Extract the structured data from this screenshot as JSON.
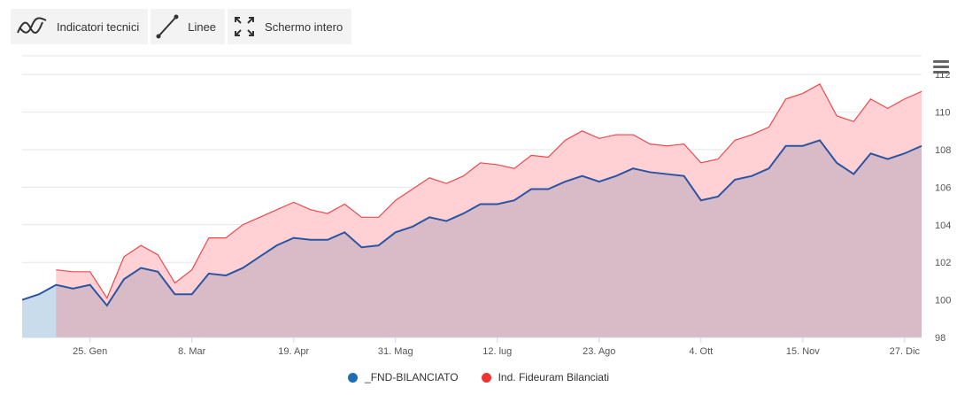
{
  "toolbar": {
    "items": [
      {
        "label": "Indicatori tecnici",
        "icon": "indicators-icon"
      },
      {
        "label": "Linee",
        "icon": "line-draw-icon"
      },
      {
        "label": "Schermo intero",
        "icon": "fullscreen-icon"
      }
    ]
  },
  "menu": {
    "icon": "hamburger-menu-icon"
  },
  "colors": {
    "fund_line": "#2b55a3",
    "fund_fill": "#c9dcec",
    "index_line": "#f0484b",
    "index_fill": "#ffd1d4",
    "overlap_fill": "#d9bac7",
    "grid": "#e6e6e6",
    "legend_fund": "#1f6db5",
    "legend_index": "#f03434"
  },
  "chart_data": {
    "type": "area",
    "title": "",
    "xlabel": "",
    "ylabel": "",
    "ylim": [
      98,
      113
    ],
    "yticks": [
      98,
      100,
      102,
      104,
      106,
      108,
      110,
      112
    ],
    "xticks": [
      "25. Gen",
      "8. Mar",
      "19. Apr",
      "31. Mag",
      "12. lug",
      "23. Ago",
      "4. Ott",
      "15. Nov",
      "27. Dic"
    ],
    "xtick_index": [
      4,
      10,
      16,
      22,
      28,
      34,
      40,
      46,
      52
    ],
    "x_count": 54,
    "grid": true,
    "legend_position": "bottom-center",
    "series": [
      {
        "name": "_FND-BILANCIATO",
        "values": [
          100.0,
          100.3,
          100.8,
          100.6,
          100.8,
          99.7,
          101.1,
          101.7,
          101.5,
          100.3,
          100.3,
          101.4,
          101.3,
          101.7,
          102.3,
          102.9,
          103.3,
          103.2,
          103.2,
          103.6,
          102.8,
          102.9,
          103.6,
          103.9,
          104.4,
          104.2,
          104.6,
          105.1,
          105.1,
          105.3,
          105.9,
          105.9,
          106.3,
          106.6,
          106.3,
          106.6,
          107.0,
          106.8,
          106.7,
          106.6,
          105.3,
          105.5,
          106.4,
          106.6,
          107.0,
          108.2,
          108.2,
          108.5,
          107.3,
          106.7,
          107.8,
          107.5,
          107.8,
          108.2
        ]
      },
      {
        "name": "Ind. Fideuram Bilanciati",
        "values": [
          null,
          null,
          101.6,
          101.5,
          101.5,
          100.1,
          102.3,
          102.9,
          102.4,
          100.9,
          101.6,
          103.3,
          103.3,
          104.0,
          104.4,
          104.8,
          105.2,
          104.8,
          104.6,
          105.1,
          104.4,
          104.4,
          105.3,
          105.9,
          106.5,
          106.2,
          106.6,
          107.3,
          107.2,
          107.0,
          107.7,
          107.6,
          108.5,
          109.0,
          108.6,
          108.8,
          108.8,
          108.3,
          108.2,
          108.3,
          107.3,
          107.5,
          108.5,
          108.8,
          109.2,
          110.7,
          111.0,
          111.5,
          109.8,
          109.5,
          110.7,
          110.2,
          110.7,
          111.1
        ]
      }
    ]
  },
  "legend": {
    "fund_label": "_FND-BILANCIATO",
    "index_label": "Ind. Fideuram Bilanciati"
  }
}
